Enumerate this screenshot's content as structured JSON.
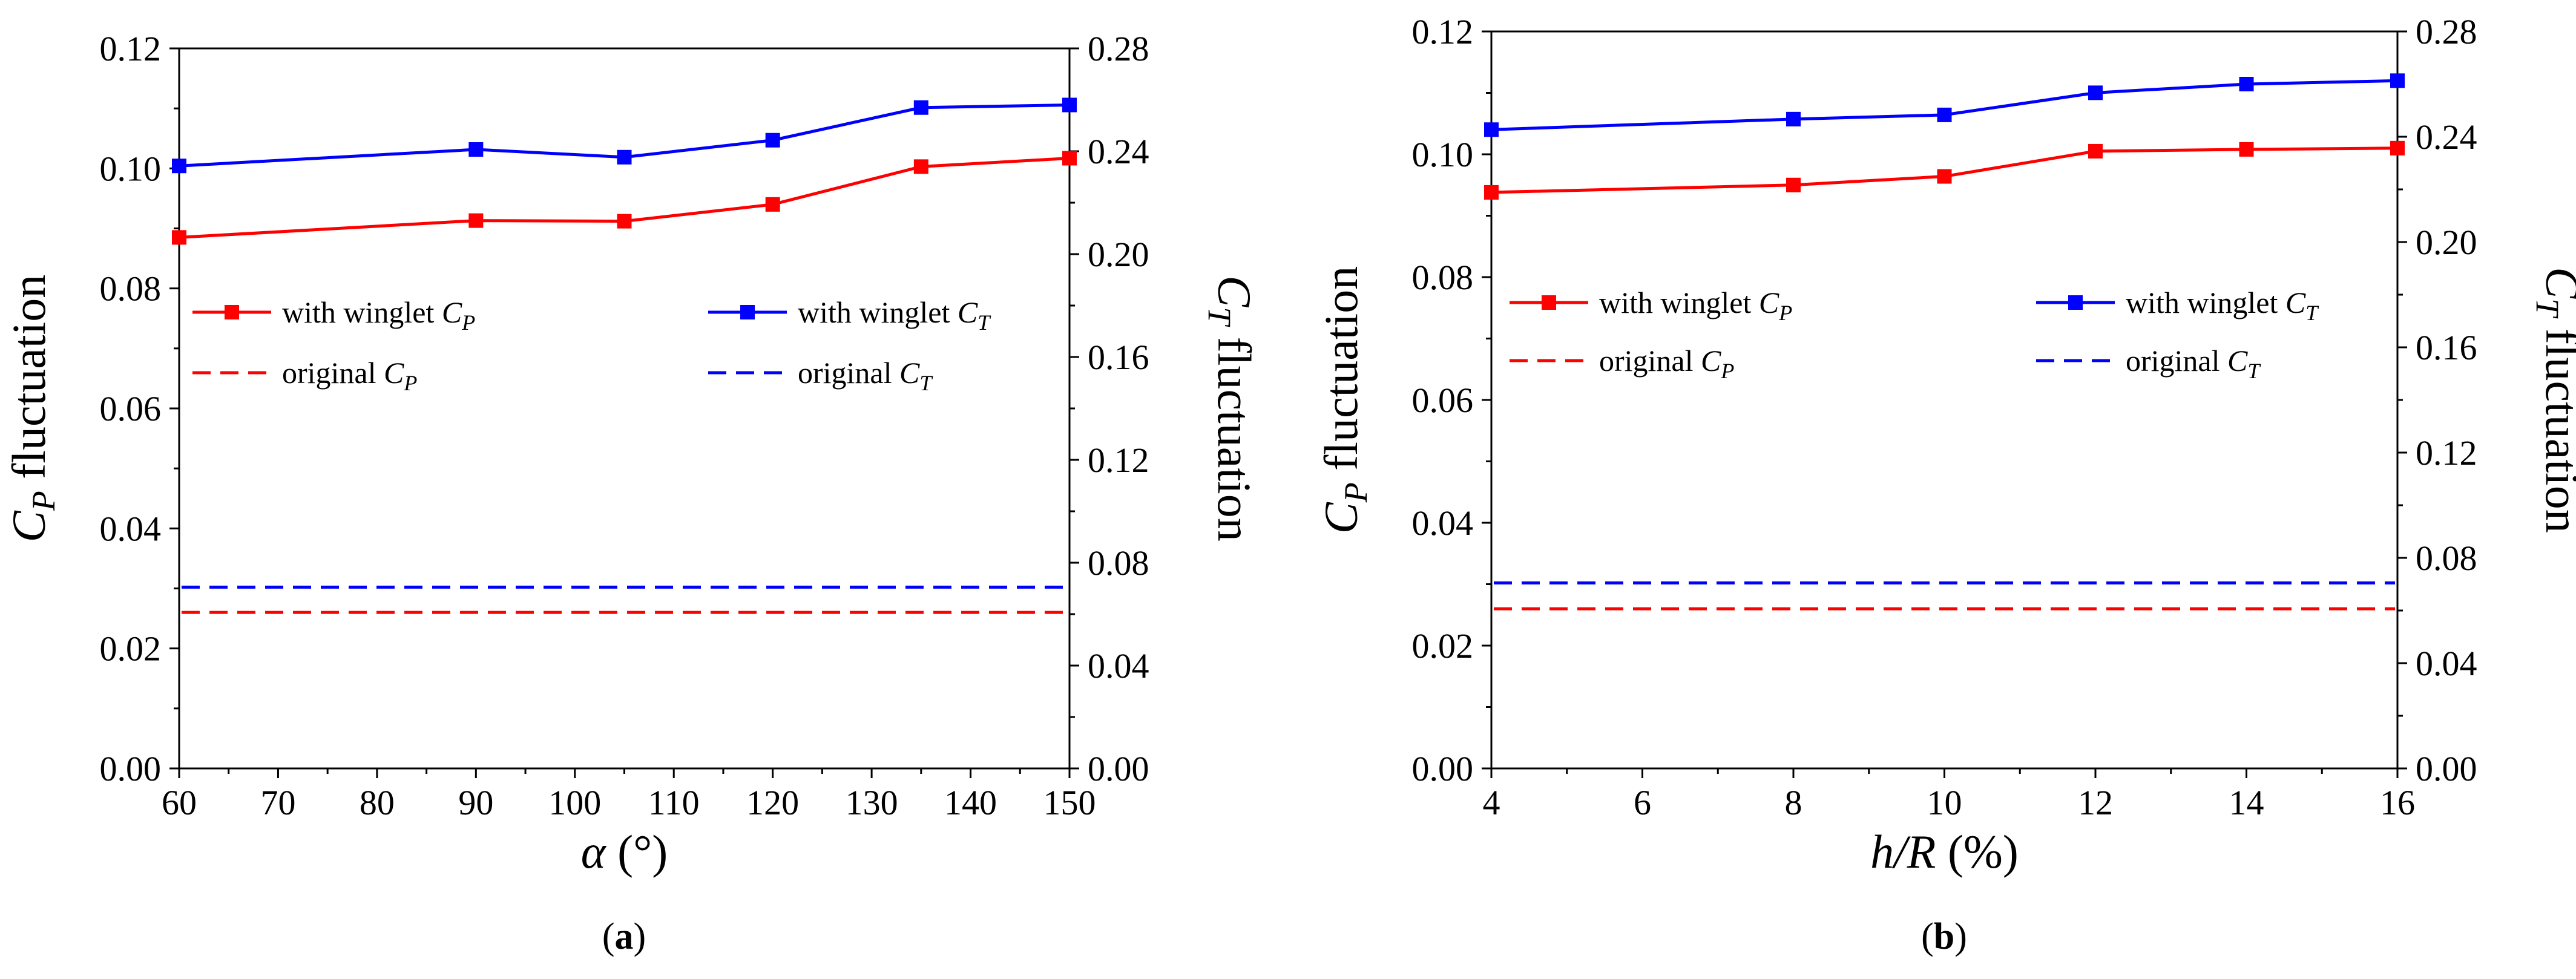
{
  "chart_data": [
    {
      "type": "line",
      "panel_label": "a",
      "xlabel": {
        "symbol": "α",
        "unit": "(°)"
      },
      "ylabel_left": {
        "symbol": "C",
        "sub": "P",
        "rest": "fluctuation"
      },
      "ylabel_right": {
        "symbol": "C",
        "sub": "T",
        "rest": "fluctuation"
      },
      "xlim": [
        60,
        150
      ],
      "xticks": [
        60,
        70,
        80,
        90,
        100,
        110,
        120,
        130,
        140,
        150
      ],
      "ylim_left": [
        0,
        0.12
      ],
      "yticks_left": [
        "0.00",
        "0.02",
        "0.04",
        "0.06",
        "0.08",
        "0.10",
        "0.12"
      ],
      "ylim_right": [
        0,
        0.28
      ],
      "yticks_right": [
        "0.00",
        "0.04",
        "0.08",
        "0.12",
        "0.16",
        "0.20",
        "0.24",
        "0.28"
      ],
      "x": [
        60,
        90,
        105,
        120,
        135,
        150
      ],
      "series": [
        {
          "name": "with winglet C_P",
          "axis": "left",
          "color": "#ff0000",
          "values": [
            0.0885,
            0.0913,
            0.0912,
            0.094,
            0.1003,
            0.1017
          ]
        },
        {
          "name": "with winglet C_T",
          "axis": "right",
          "color": "#0000ff",
          "values": [
            0.2343,
            0.2407,
            0.2377,
            0.2443,
            0.257,
            0.258
          ]
        },
        {
          "name": "original C_P",
          "axis": "left",
          "color": "#ff0000",
          "dashed": true,
          "constant": 0.026
        },
        {
          "name": "original C_T",
          "axis": "right",
          "color": "#0000ff",
          "dashed": true,
          "constant": 0.0705
        }
      ],
      "legend": [
        {
          "pre": "with winglet ",
          "symbol": "C",
          "sub": "P",
          "color": "#ff0000",
          "marker": true
        },
        {
          "pre": "original ",
          "symbol": "C",
          "sub": "P",
          "color": "#ff0000",
          "marker": false
        },
        {
          "pre": "with winglet ",
          "symbol": "C",
          "sub": "T",
          "color": "#0000ff",
          "marker": true
        },
        {
          "pre": "original ",
          "symbol": "C",
          "sub": "T",
          "color": "#0000ff",
          "marker": false
        }
      ]
    },
    {
      "type": "line",
      "panel_label": "b",
      "xlabel": {
        "symbol": "h/R",
        "unit": "(%)"
      },
      "ylabel_left": {
        "symbol": "C",
        "sub": "P",
        "rest": "fluctuation"
      },
      "ylabel_right": {
        "symbol": "C",
        "sub": "T",
        "rest": "fluctuation"
      },
      "xlim": [
        4,
        16
      ],
      "xticks": [
        4,
        6,
        8,
        10,
        12,
        14,
        16
      ],
      "ylim_left": [
        0,
        0.12
      ],
      "yticks_left": [
        "0.00",
        "0.02",
        "0.04",
        "0.06",
        "0.08",
        "0.10",
        "0.12"
      ],
      "ylim_right": [
        0,
        0.28
      ],
      "yticks_right": [
        "0.00",
        "0.04",
        "0.08",
        "0.12",
        "0.16",
        "0.20",
        "0.24",
        "0.28"
      ],
      "x": [
        4,
        8,
        10,
        12,
        14,
        16
      ],
      "series": [
        {
          "name": "with winglet C_P",
          "axis": "left",
          "color": "#ff0000",
          "values": [
            0.0938,
            0.095,
            0.0964,
            0.1005,
            0.1008,
            0.101
          ]
        },
        {
          "name": "with winglet C_T",
          "axis": "right",
          "color": "#0000ff",
          "values": [
            0.2427,
            0.2467,
            0.2483,
            0.2567,
            0.26,
            0.2613
          ]
        },
        {
          "name": "original C_P",
          "axis": "left",
          "color": "#ff0000",
          "dashed": true,
          "constant": 0.026
        },
        {
          "name": "original C_T",
          "axis": "right",
          "color": "#0000ff",
          "dashed": true,
          "constant": 0.0705
        }
      ],
      "legend": [
        {
          "pre": "with winglet ",
          "symbol": "C",
          "sub": "P",
          "color": "#ff0000",
          "marker": true
        },
        {
          "pre": "original ",
          "symbol": "C",
          "sub": "P",
          "color": "#ff0000",
          "marker": false
        },
        {
          "pre": "with winglet ",
          "symbol": "C",
          "sub": "T",
          "color": "#0000ff",
          "marker": true
        },
        {
          "pre": "original ",
          "symbol": "C",
          "sub": "T",
          "color": "#0000ff",
          "marker": false
        }
      ]
    }
  ]
}
